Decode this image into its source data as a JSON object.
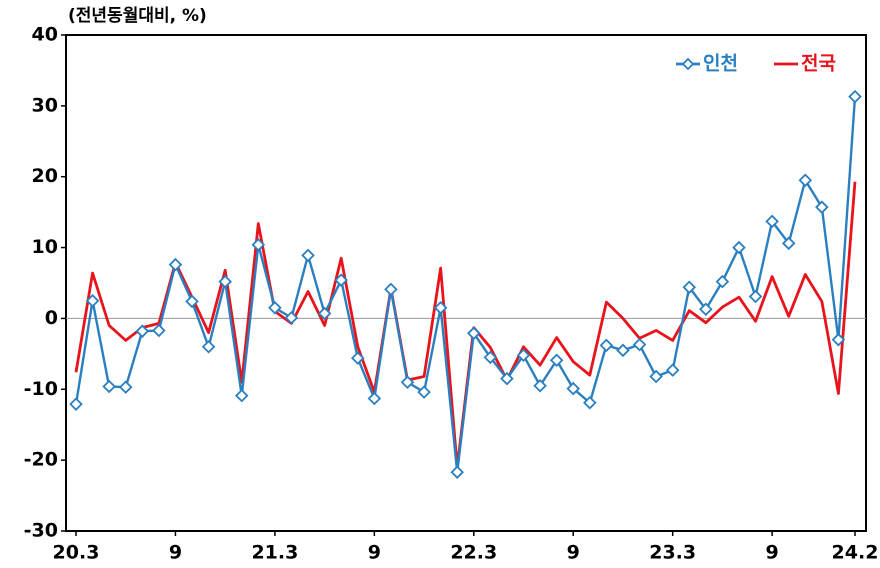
{
  "chart_data": {
    "type": "line",
    "title": "(전년동월대비, %)",
    "categories": [
      "20.3",
      null,
      null,
      null,
      null,
      null,
      "9",
      null,
      null,
      null,
      null,
      null,
      "21.3",
      null,
      null,
      null,
      null,
      null,
      "9",
      null,
      null,
      null,
      null,
      null,
      "22.3",
      null,
      null,
      null,
      null,
      null,
      "9",
      null,
      null,
      null,
      null,
      null,
      "23.3",
      null,
      null,
      null,
      null,
      null,
      "9",
      null,
      null,
      null,
      null,
      "24.2"
    ],
    "series": [
      {
        "name": "인천",
        "color": "#2a7fc1",
        "marker": "diamond",
        "values": [
          -12.1,
          2.5,
          -9.6,
          -9.7,
          -1.8,
          -1.7,
          7.6,
          2.4,
          -4.0,
          5.2,
          -10.9,
          10.4,
          1.5,
          0.1,
          8.9,
          0.7,
          5.4,
          -5.6,
          -11.3,
          4.1,
          -9.0,
          -10.4,
          1.5,
          -21.7,
          -2.1,
          -5.5,
          -8.5,
          -5.2,
          -9.5,
          -5.9,
          -9.9,
          -11.9,
          -3.8,
          -4.5,
          -3.7,
          -8.2,
          -7.3,
          4.4,
          1.3,
          5.2,
          10.0,
          3.1,
          13.7,
          10.6,
          19.5,
          15.7,
          -3.0,
          31.3
        ]
      },
      {
        "name": "전국",
        "color": "#e8131b",
        "values": [
          -7.6,
          6.4,
          -1.0,
          -3.1,
          -1.3,
          -0.7,
          7.9,
          3.0,
          -2.0,
          6.8,
          -9.0,
          13.4,
          1.0,
          -0.7,
          3.8,
          -1.0,
          8.5,
          -4.0,
          -10.4,
          4.2,
          -8.7,
          -8.2,
          7.1,
          -21.0,
          -1.3,
          -4.1,
          -8.7,
          -4.0,
          -6.6,
          -2.7,
          -6.1,
          -8.0,
          2.3,
          0,
          -2.8,
          -1.7,
          -3.1,
          1.1,
          -0.6,
          1.6,
          3.0,
          -0.4,
          5.9,
          0.3,
          6.2,
          2.4,
          -10.6,
          19.3
        ]
      }
    ],
    "ylim": [
      -30,
      40
    ],
    "yticks": [
      -30,
      -20,
      -10,
      0,
      10,
      20,
      30,
      40
    ],
    "legend": "top-right"
  }
}
